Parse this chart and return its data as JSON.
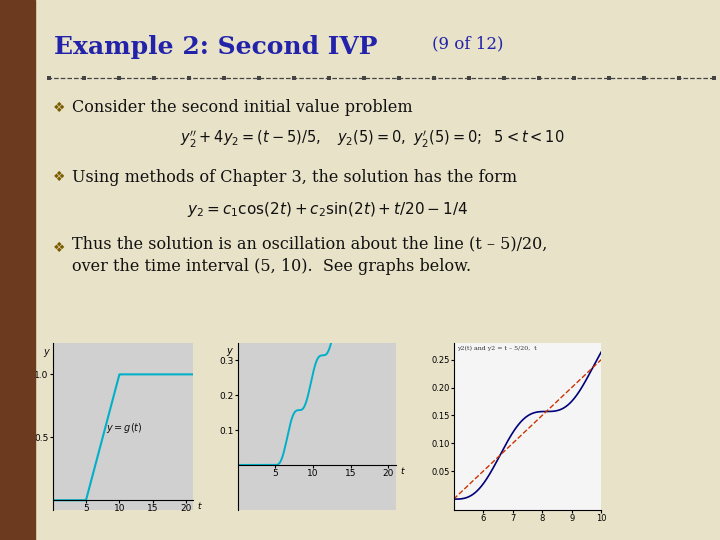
{
  "title": "Example 2: Second IVP",
  "title_sub": "(9 of 12)",
  "bg_color": "#e8e2c8",
  "left_bar_color": "#6b3a1f",
  "title_color": "#2222aa",
  "text_color": "#111111",
  "divider_color": "#444444",
  "graph_bg": "#d0d0d0",
  "graph_line_color": "#00b0c8",
  "graph3_bg": "#f5f5f5",
  "graph3_line1_color": "#00007a",
  "graph3_line2_color": "#cc3300",
  "bullet1_text": "Consider the second initial value problem",
  "bullet2_text": "Using methods of Chapter 3, the solution has the form",
  "bullet3_text1": "Thus the solution is an oscillation about the line (t – 5)/20,",
  "bullet3_text2": "over the time interval (5, 10).  See graphs below.",
  "graph3_legend": "y2(t) and y2 = t – 5/20,  t"
}
